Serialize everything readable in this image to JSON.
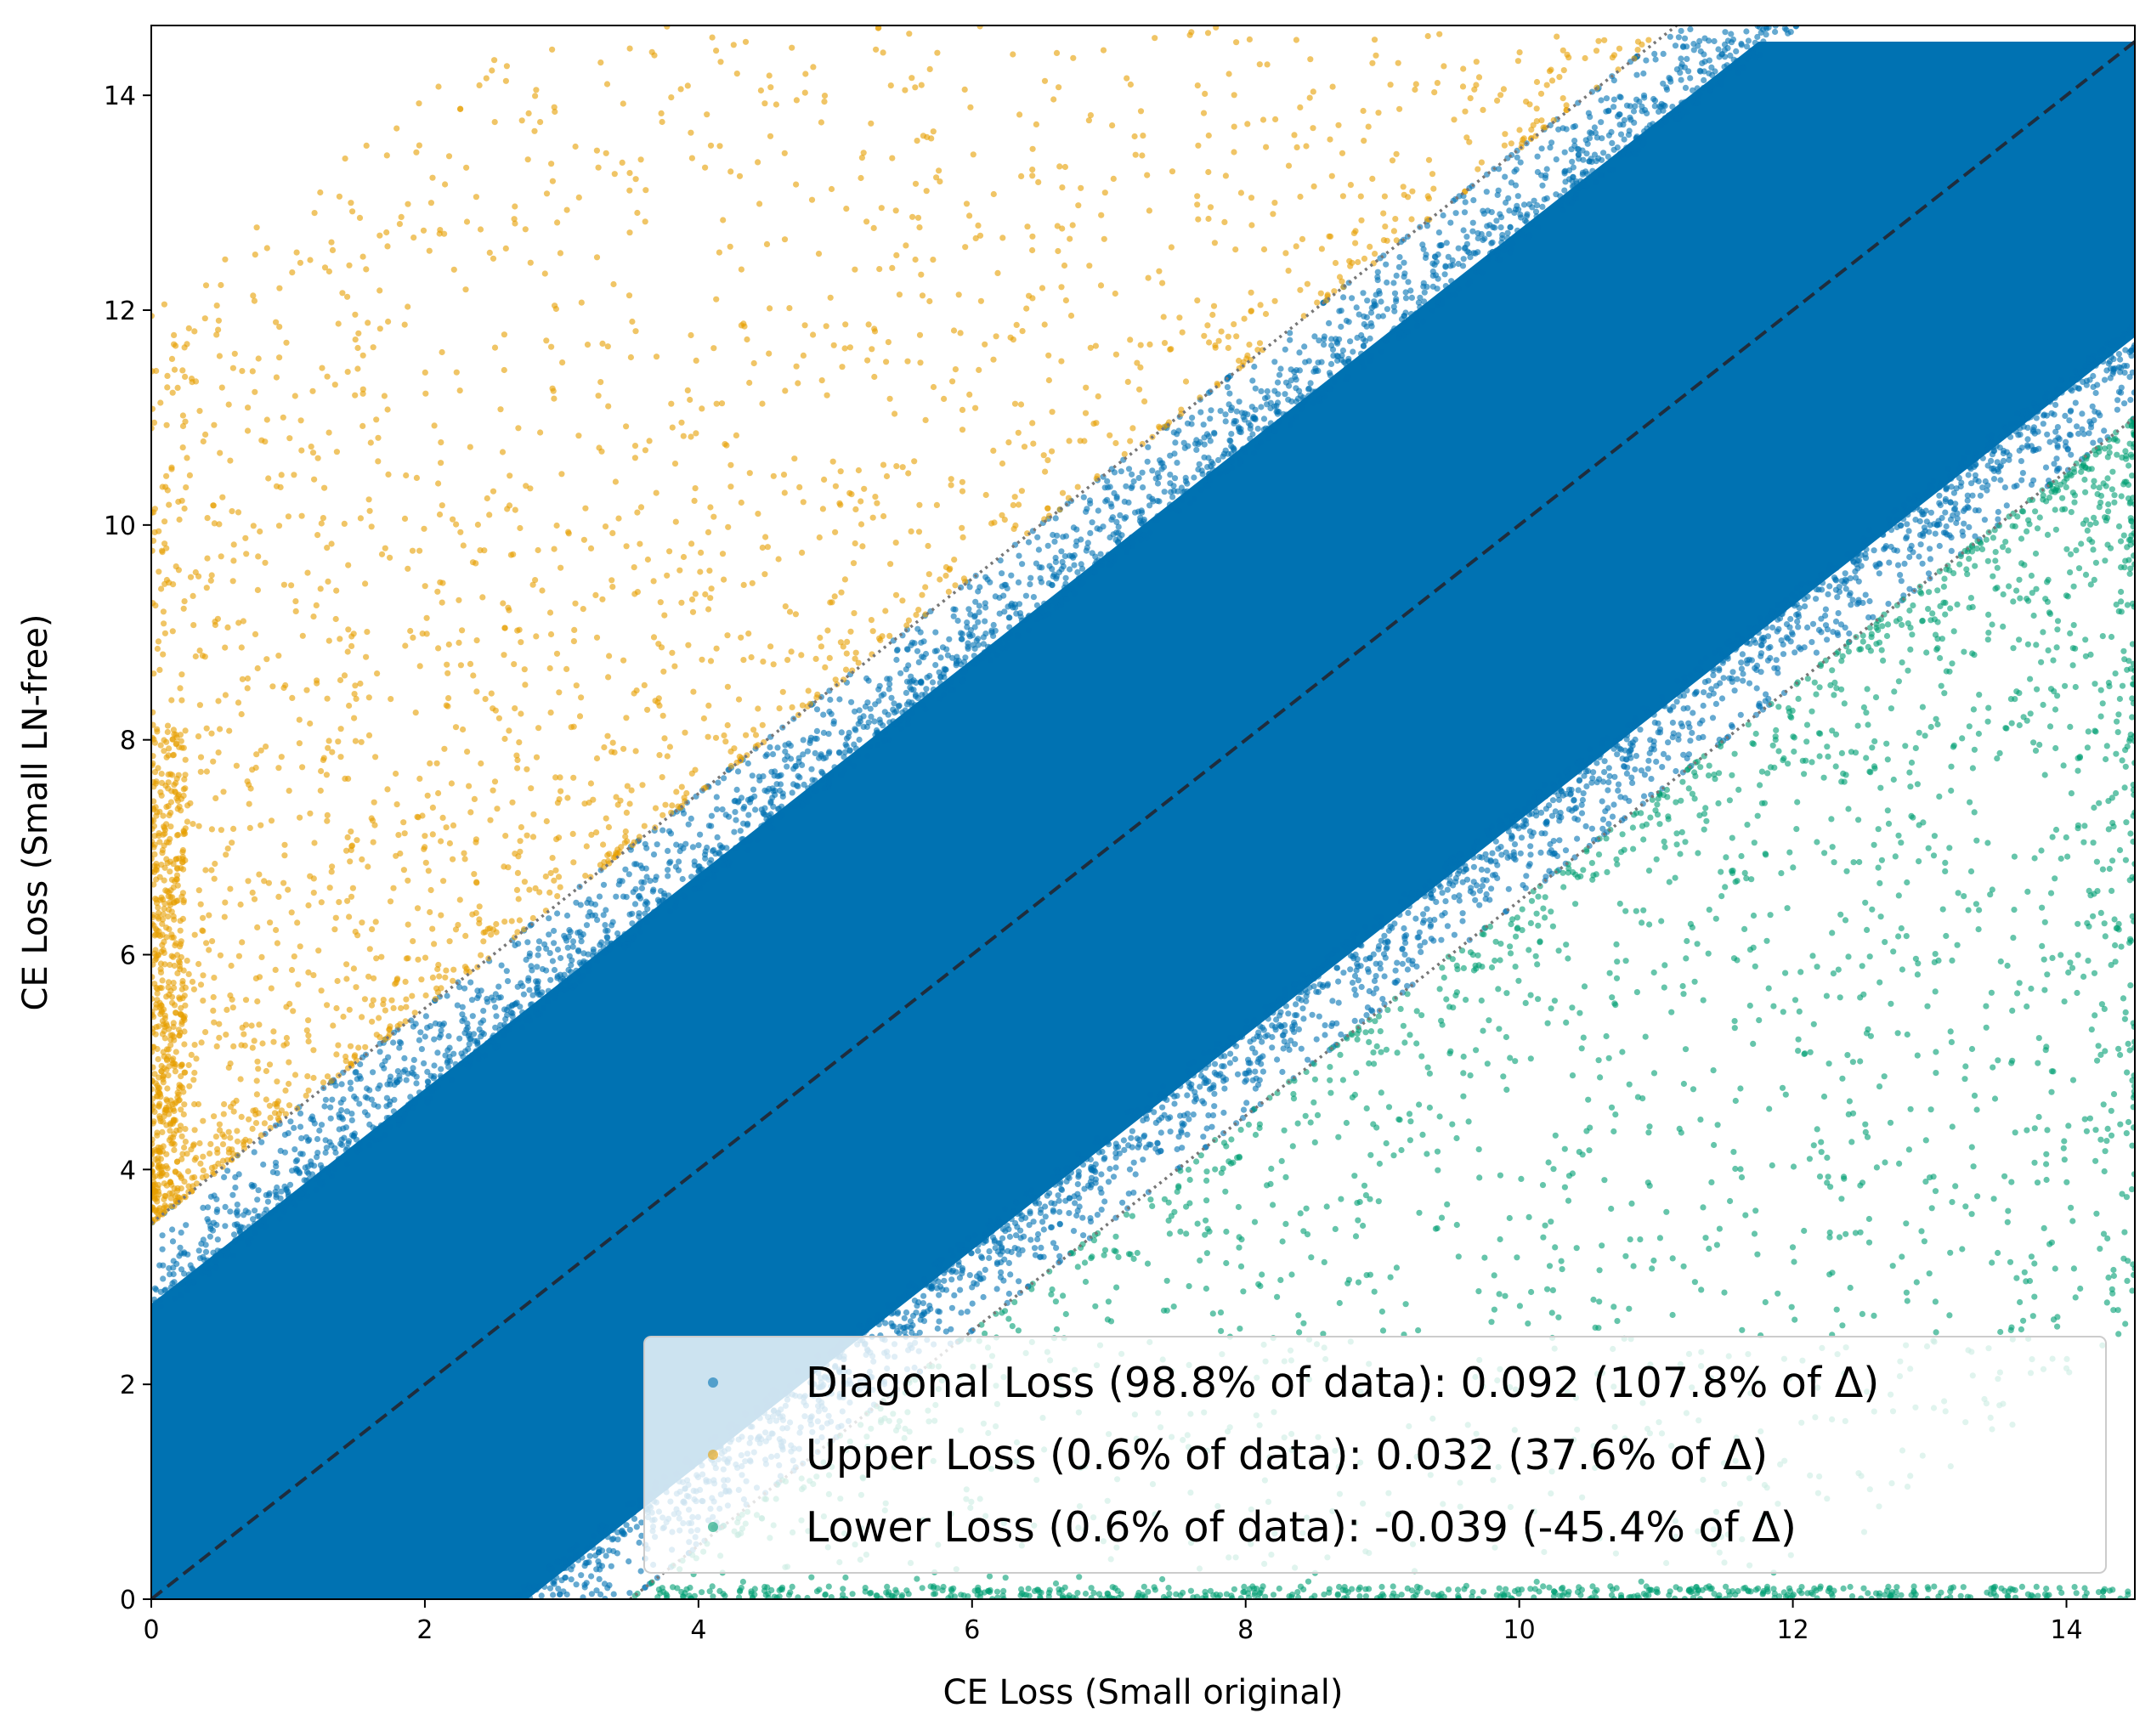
{
  "chart_data": {
    "type": "scatter",
    "title": "",
    "xlabel": "CE Loss (Small original)",
    "ylabel": "CE Loss (Small LN-free)",
    "xlim": [
      0,
      14.5
    ],
    "ylim": [
      0,
      14.65
    ],
    "x_ticks": [
      "0",
      "2",
      "4",
      "6",
      "8",
      "10",
      "12",
      "14"
    ],
    "y_ticks": [
      "0",
      "2",
      "4",
      "6",
      "8",
      "10",
      "12",
      "14"
    ],
    "grid": false,
    "legend_position": "lower-right",
    "reference_lines": [
      {
        "type": "diagonal",
        "style": "dashed",
        "color": "#1f2d3d",
        "intercept": 0
      },
      {
        "type": "upper-threshold",
        "style": "dotted",
        "color": "#777777",
        "intercept": 3.5
      },
      {
        "type": "lower-threshold",
        "style": "dotted",
        "color": "#777777",
        "intercept": -3.5
      }
    ],
    "series": [
      {
        "name": "Diagonal Loss (98.8% of data): 0.092 (107.8% of Δ)",
        "color": "#0072b2",
        "description_band": [
          -3.5,
          3.5
        ]
      },
      {
        "name": "Upper Loss (0.6% of data): 0.032 (37.6% of Δ)",
        "color": "#e69f00",
        "description_band": [
          3.5,
          14.65
        ]
      },
      {
        "name": "Lower Loss (0.6% of data): -0.039 (-45.4% of Δ)",
        "color": "#009e73",
        "description_band": [
          -14.5,
          -3.5
        ]
      }
    ]
  }
}
